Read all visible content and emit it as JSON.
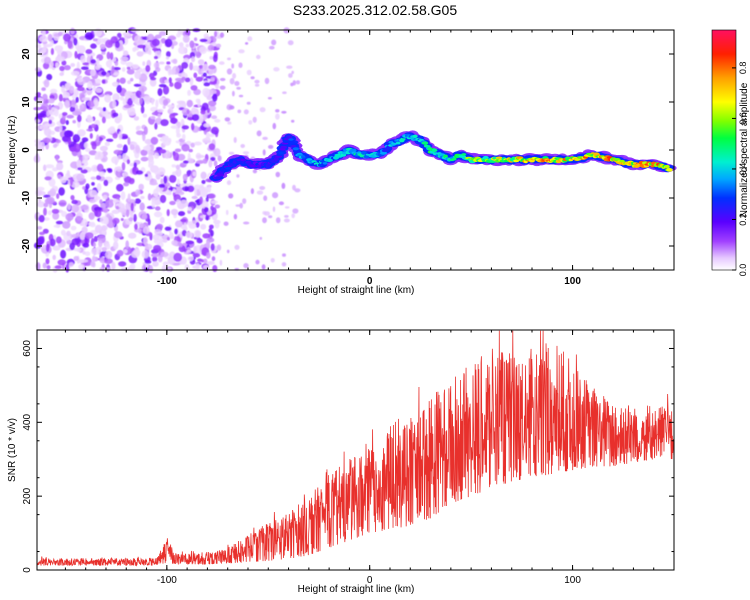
{
  "title": "S233.2025.312.02.58.G05",
  "chart_data": [
    {
      "type": "heatmap",
      "xlabel": "Height of straight line (km)",
      "ylabel": "Frequency (Hz)",
      "xlim": [
        -164,
        150
      ],
      "ylim": [
        -25,
        25
      ],
      "xticks": [
        -100,
        0,
        100
      ],
      "yticks": [
        -20,
        -10,
        0,
        10,
        20
      ],
      "colorbar": {
        "label": "Normalized spectral amplitude",
        "range": [
          0,
          0.95
        ],
        "ticks": [
          0.0,
          0.2,
          0.4,
          0.6,
          0.8
        ]
      },
      "ridge": {
        "x": [
          -76,
          -72,
          -65,
          -58,
          -50,
          -44,
          -40,
          -35,
          -30,
          -25,
          -20,
          -15,
          -10,
          -5,
          0,
          5,
          10,
          15,
          20,
          25,
          30,
          35,
          40,
          45,
          50,
          60,
          70,
          80,
          90,
          100,
          110,
          120,
          130,
          140,
          148
        ],
        "freq": [
          -6,
          -4,
          -2,
          -3,
          -3,
          -1,
          3,
          -1,
          -2,
          -3,
          -2,
          -1,
          0,
          -1,
          -1,
          -1,
          1,
          2,
          3,
          2,
          0,
          -1,
          -2,
          -1,
          -2,
          -2,
          -2,
          -2,
          -2,
          -2,
          -1,
          -2,
          -3,
          -3,
          -4
        ],
        "amplitude": [
          0.25,
          0.3,
          0.3,
          0.28,
          0.3,
          0.32,
          0.3,
          0.38,
          0.42,
          0.45,
          0.42,
          0.45,
          0.5,
          0.48,
          0.46,
          0.4,
          0.42,
          0.45,
          0.48,
          0.45,
          0.55,
          0.5,
          0.55,
          0.6,
          0.65,
          0.7,
          0.75,
          0.82,
          0.85,
          0.8,
          0.85,
          0.9,
          0.85,
          0.9,
          0.8
        ]
      },
      "noise_region": {
        "x_range": [
          -164,
          -75
        ],
        "freq_range": [
          -25,
          25
        ],
        "amplitude_max": 0.15
      }
    },
    {
      "type": "line",
      "xlabel": "Height of straight line (km)",
      "ylabel": "SNR (10 * v/v)",
      "xlim": [
        -164,
        150
      ],
      "ylim": [
        0,
        650
      ],
      "xticks": [
        -100,
        0,
        100
      ],
      "yticks": [
        0,
        200,
        400,
        600
      ],
      "series": [
        {
          "color": "#e8302c",
          "envelope_x": [
            -164,
            -105,
            -100,
            -95,
            -80,
            -70,
            -60,
            -50,
            -40,
            -30,
            -20,
            -10,
            0,
            10,
            20,
            30,
            40,
            50,
            60,
            70,
            80,
            90,
            100,
            110,
            120,
            130,
            140,
            150
          ],
          "envelope_high": [
            32,
            32,
            90,
            45,
            45,
            60,
            95,
            130,
            160,
            200,
            260,
            300,
            330,
            390,
            440,
            480,
            520,
            560,
            600,
            590,
            600,
            640,
            560,
            500,
            460,
            450,
            450,
            440
          ],
          "envelope_low": [
            12,
            12,
            20,
            15,
            15,
            18,
            20,
            25,
            30,
            40,
            60,
            80,
            100,
            110,
            120,
            140,
            180,
            200,
            220,
            240,
            250,
            260,
            270,
            280,
            280,
            290,
            300,
            300
          ]
        }
      ]
    }
  ]
}
